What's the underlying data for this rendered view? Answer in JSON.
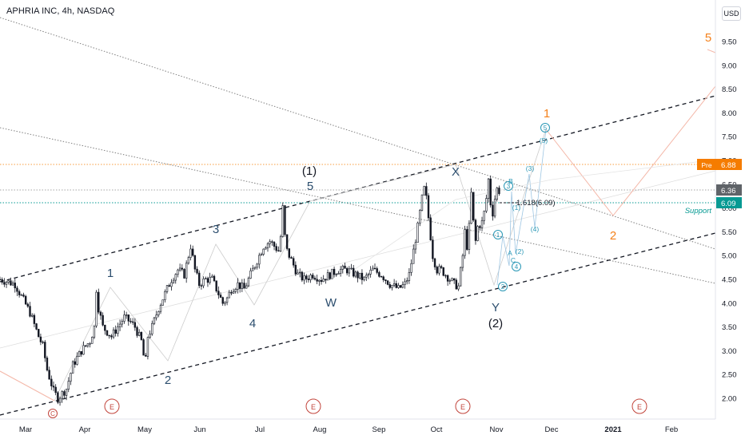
{
  "header": {
    "title": "APHRIA INC, 4h, NASDAQ"
  },
  "currency": "USD",
  "colors": {
    "candle": "#131722",
    "wave_blue": "#2c4e6e",
    "wave_orange": "#f4801a",
    "wave_cyan": "#2b98b6",
    "wave_red": "#c2453c",
    "grey_line": "#808080",
    "pre_badge": "#f57c00",
    "last_badge": "#5f6368",
    "support_badge": "#079a93",
    "projection": "#f4b7a8",
    "minor_line": "#9ec6e3"
  },
  "chart_data": {
    "type": "candlestick",
    "symbol": "APHRIA INC",
    "interval": "4h",
    "exchange": "NASDAQ",
    "x_axis": {
      "ticks": [
        "Mar",
        "Apr",
        "May",
        "Jun",
        "Jul",
        "Aug",
        "Sep",
        "Oct",
        "Nov",
        "Dec",
        "2021",
        "Feb"
      ]
    },
    "y_axis": {
      "ticks": [
        2.0,
        2.5,
        3.0,
        3.5,
        4.0,
        4.5,
        5.0,
        5.5,
        6.0,
        6.5,
        7.0,
        7.5,
        8.0,
        8.5,
        9.0,
        9.5
      ],
      "range": [
        1.6,
        10.2
      ]
    },
    "price_labels": [
      {
        "label": "Pre",
        "value": "6.88"
      },
      {
        "label": "",
        "value": "6.36"
      },
      {
        "label": "",
        "value": "6.09"
      }
    ],
    "support_label": "Support",
    "fib_label": "1.618(6.09)",
    "price_path": [
      [
        0,
        4.5
      ],
      [
        7,
        4.4
      ],
      [
        14,
        3.8
      ],
      [
        18,
        3.3
      ],
      [
        20,
        3.1
      ],
      [
        22,
        2.6
      ],
      [
        25,
        2.15
      ],
      [
        27,
        2.0
      ],
      [
        28,
        2.05
      ],
      [
        31,
        2.2
      ],
      [
        34,
        2.7
      ],
      [
        38,
        3.0
      ],
      [
        42,
        3.2
      ],
      [
        44,
        3.5
      ],
      [
        45,
        4.3
      ],
      [
        46,
        3.9
      ],
      [
        48,
        3.5
      ],
      [
        52,
        3.3
      ],
      [
        55,
        3.5
      ],
      [
        58,
        3.7
      ],
      [
        61,
        3.6
      ],
      [
        63,
        3.5
      ],
      [
        66,
        3.2
      ],
      [
        67,
        2.9
      ],
      [
        68,
        2.8
      ],
      [
        69,
        3.3
      ],
      [
        71,
        3.5
      ],
      [
        74,
        3.9
      ],
      [
        77,
        4.2
      ],
      [
        80,
        4.5
      ],
      [
        83,
        4.7
      ],
      [
        86,
        4.6
      ],
      [
        88,
        5.0
      ],
      [
        89,
        5.2
      ],
      [
        91,
        4.7
      ],
      [
        93,
        4.4
      ],
      [
        96,
        4.5
      ],
      [
        99,
        4.5
      ],
      [
        101,
        4.3
      ],
      [
        104,
        4.0
      ],
      [
        106,
        4.1
      ],
      [
        108,
        4.3
      ],
      [
        111,
        4.4
      ],
      [
        114,
        4.3
      ],
      [
        117,
        4.6
      ],
      [
        120,
        4.9
      ],
      [
        123,
        5.2
      ],
      [
        126,
        5.3
      ],
      [
        128,
        5.2
      ],
      [
        130,
        5.1
      ],
      [
        131,
        5.4
      ],
      [
        132,
        6.0
      ],
      [
        133,
        5.4
      ],
      [
        134,
        5.1
      ],
      [
        136,
        4.9
      ],
      [
        139,
        4.6
      ],
      [
        142,
        4.5
      ],
      [
        146,
        4.6
      ],
      [
        150,
        4.5
      ],
      [
        154,
        4.6
      ],
      [
        158,
        4.7
      ],
      [
        162,
        4.7
      ],
      [
        166,
        4.6
      ],
      [
        170,
        4.5
      ],
      [
        174,
        4.7
      ],
      [
        178,
        4.6
      ],
      [
        182,
        4.4
      ],
      [
        186,
        4.3
      ],
      [
        189,
        4.4
      ],
      [
        191,
        4.6
      ],
      [
        193,
        5.1
      ],
      [
        195,
        5.6
      ],
      [
        197,
        6.2
      ],
      [
        198,
        6.4
      ],
      [
        199,
        6.2
      ],
      [
        200,
        5.8
      ],
      [
        201,
        5.4
      ],
      [
        202,
        5.0
      ],
      [
        204,
        4.7
      ],
      [
        206,
        4.7
      ],
      [
        208,
        4.6
      ],
      [
        210,
        4.5
      ],
      [
        212,
        4.4
      ],
      [
        214,
        4.35
      ],
      [
        216,
        5.0
      ],
      [
        217,
        5.5
      ],
      [
        218,
        5.2
      ],
      [
        219,
        5.6
      ],
      [
        220,
        6.3
      ],
      [
        221,
        5.7
      ],
      [
        222,
        5.3
      ],
      [
        223,
        5.6
      ],
      [
        225,
        5.7
      ],
      [
        226,
        5.9
      ],
      [
        227,
        6.2
      ],
      [
        228,
        6.6
      ],
      [
        229,
        6.1
      ],
      [
        230,
        5.9
      ],
      [
        231,
        6.2
      ],
      [
        232,
        6.4
      ],
      [
        233,
        6.36
      ]
    ],
    "wave_labels": {
      "blue": [
        "1",
        "2",
        "3",
        "4",
        "5",
        "(1)",
        "W",
        "X",
        "Y",
        "(2)",
        "C"
      ],
      "orange": [
        "1",
        "2",
        "5"
      ],
      "cyan": [
        "1",
        "2",
        "3",
        "4",
        "5",
        "(3)",
        "(4)",
        "(5)",
        "A",
        "B",
        "C",
        "(1)",
        "(2)"
      ],
      "events": [
        "E",
        "E",
        "E",
        "E"
      ]
    }
  }
}
